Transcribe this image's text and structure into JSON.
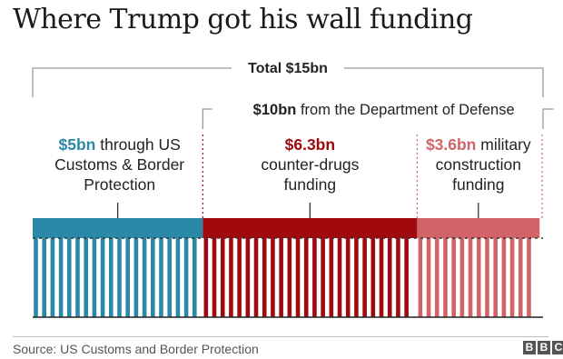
{
  "title": "Where Trump got his wall funding",
  "total_label": "Total $15bn",
  "defense_label": {
    "amount": "$10bn",
    "text": "from the Department of Defense"
  },
  "source": "Source: US Customs and Border Protection",
  "logo_letters": [
    "B",
    "B",
    "C"
  ],
  "colors": {
    "cbp": "#2b89a8",
    "drugs": "#a00a0e",
    "military": "#d26468",
    "bracket": "#9a9a9a"
  },
  "chart_data": {
    "type": "bar",
    "orientation": "horizontal-stacked",
    "unit": "$bn",
    "total": 15,
    "segments": [
      {
        "name": "cbp",
        "value": 5,
        "value_label": "$5bn",
        "label_lines": [
          "through US",
          "Customs & Border",
          "Protection"
        ]
      },
      {
        "name": "drugs",
        "value": 6.3,
        "value_label": "$6.3bn",
        "label_lines": [
          "counter-drugs",
          "funding"
        ]
      },
      {
        "name": "military",
        "value": 3.6,
        "value_label": "$3.6bn",
        "label_lines": [
          "military",
          "construction",
          "funding"
        ]
      }
    ]
  }
}
